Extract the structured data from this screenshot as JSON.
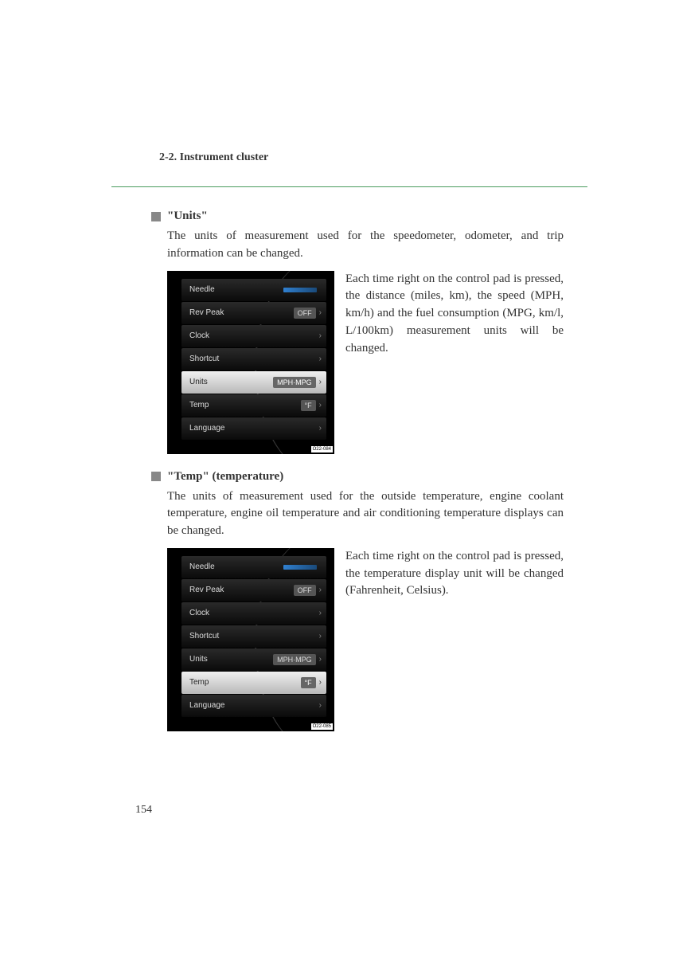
{
  "header": "2-2. Instrument cluster",
  "page_number": "154",
  "colors": {
    "divider": "#4a9b5e",
    "bullet": "#888888",
    "text": "#333333",
    "screenshot_bg": "#000000",
    "menu_bg_dark": "#1a1a1a",
    "menu_selected_bg": "#d0d0d0",
    "menu_text": "#dddddd",
    "menu_value_bg": "#555555",
    "needle_accent": "#3080d0"
  },
  "sections": [
    {
      "title": "\"Units\"",
      "description": "The units of measurement used for the speedometer, odometer, and trip information can be changed.",
      "side_text": "Each time right on the control pad is pressed, the distance (miles, km), the speed (MPH, km/h) and the fuel consumption (MPG, km/l, L/100km) measurement units will be changed.",
      "menu": {
        "selected_index": 4,
        "image_code": "O22-084",
        "items": [
          {
            "label": "Needle",
            "value": "",
            "needle": true,
            "chevron": false
          },
          {
            "label": "Rev Peak",
            "value": "OFF",
            "chevron": true
          },
          {
            "label": "Clock",
            "value": "",
            "chevron": true
          },
          {
            "label": "Shortcut",
            "value": "",
            "chevron": true
          },
          {
            "label": "Units",
            "value": "MPH·MPG",
            "chevron": true
          },
          {
            "label": "Temp",
            "value": "°F",
            "chevron": true
          },
          {
            "label": "Language",
            "value": "",
            "chevron": true
          }
        ]
      }
    },
    {
      "title": "\"Temp\" (temperature)",
      "description": "The units of measurement used for the outside temperature, engine coolant temperature, engine oil temperature and air conditioning temperature displays can be changed.",
      "side_text": "Each time right on the control pad is pressed, the temperature display unit will be changed (Fahrenheit, Celsius).",
      "menu": {
        "selected_index": 5,
        "image_code": "O22-085",
        "items": [
          {
            "label": "Needle",
            "value": "",
            "needle": true,
            "chevron": false
          },
          {
            "label": "Rev Peak",
            "value": "OFF",
            "chevron": true
          },
          {
            "label": "Clock",
            "value": "",
            "chevron": true
          },
          {
            "label": "Shortcut",
            "value": "",
            "chevron": true
          },
          {
            "label": "Units",
            "value": "MPH·MPG",
            "chevron": true
          },
          {
            "label": "Temp",
            "value": "°F",
            "chevron": true
          },
          {
            "label": "Language",
            "value": "",
            "chevron": true
          }
        ]
      }
    }
  ]
}
